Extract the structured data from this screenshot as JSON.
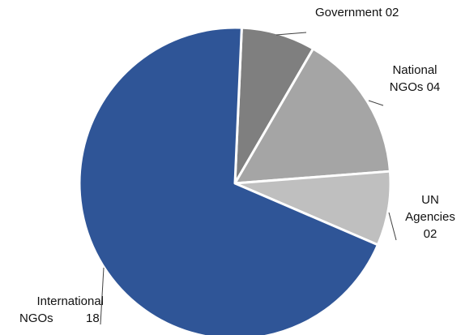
{
  "chart_data": {
    "type": "pie",
    "slices": [
      {
        "name": "International NGOs",
        "value": 18,
        "value_label": "18",
        "color": "#2f5597"
      },
      {
        "name": "Government",
        "value": 2,
        "value_label": "02",
        "color": "#7f7f7f"
      },
      {
        "name": "National NGOs",
        "value": 4,
        "value_label": "04",
        "color": "#a5a5a5"
      },
      {
        "name": "UN Agencies",
        "value": 2,
        "value_label": "02",
        "color": "#bfbfbf"
      }
    ],
    "labels": {
      "government": {
        "line1": "Government 02"
      },
      "national": {
        "line1": "National",
        "line2": "NGOs 04"
      },
      "un": {
        "line1": "UN",
        "line2": "Agencies",
        "line3": "02"
      },
      "international": {
        "line1": "International",
        "line2a": "NGOs",
        "line2b": "18"
      }
    },
    "slice_border_color": "#ffffff",
    "leader_color": "#404040"
  }
}
